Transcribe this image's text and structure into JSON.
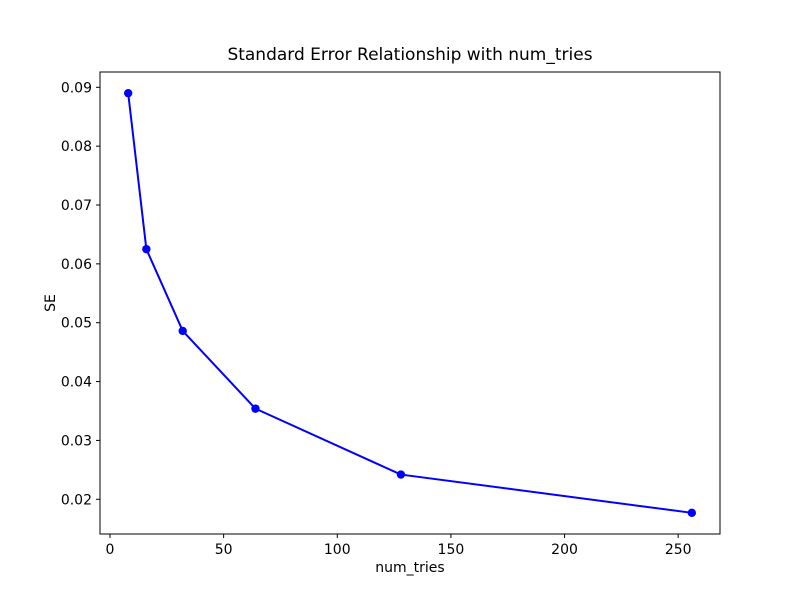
{
  "figure": {
    "background": "#ffffff",
    "text_color": "#000000",
    "spine_color": "#000000"
  },
  "chart_data": {
    "type": "line",
    "title": "Standard Error Relationship with num_tries",
    "xlabel": "num_tries",
    "ylabel": "SE",
    "x": [
      8,
      16,
      32,
      64,
      128,
      256
    ],
    "y": [
      0.089,
      0.0625,
      0.0486,
      0.0354,
      0.0242,
      0.0177
    ],
    "line_color": "#0000ff",
    "marker": "circle",
    "xlim": [
      -4.4,
      268.4
    ],
    "ylim": [
      0.0141,
      0.0926
    ],
    "x_ticks": [
      0,
      50,
      100,
      150,
      200,
      250
    ],
    "y_ticks": [
      0.02,
      0.03,
      0.04,
      0.05,
      0.06,
      0.07,
      0.08,
      0.09
    ],
    "y_tick_decimals": 2,
    "grid": false,
    "legend_position": "none"
  }
}
